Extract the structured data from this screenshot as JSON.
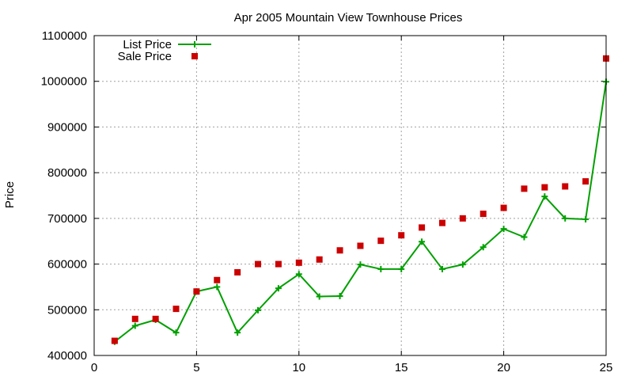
{
  "chart_data": {
    "type": "line",
    "title": "Apr 2005 Mountain View Townhouse Prices",
    "xlabel": "",
    "ylabel": "Price",
    "xlim": [
      0,
      25
    ],
    "ylim": [
      400000,
      1100000
    ],
    "x_ticks": [
      "0",
      "5",
      "10",
      "15",
      "20",
      "25"
    ],
    "y_ticks": [
      "400000",
      "500000",
      "600000",
      "700000",
      "800000",
      "900000",
      "1000000",
      "1100000"
    ],
    "grid": true,
    "legend_position": "top-left",
    "series": [
      {
        "name": "List Price",
        "style": "line-with-plus-markers",
        "color": "#00a000",
        "x": [
          1,
          2,
          3,
          4,
          5,
          6,
          7,
          8,
          9,
          10,
          11,
          12,
          13,
          14,
          15,
          16,
          17,
          18,
          19,
          20,
          21,
          22,
          23,
          24,
          25
        ],
        "y": [
          430000,
          465000,
          478000,
          450000,
          540000,
          550000,
          450000,
          499000,
          547000,
          578000,
          529000,
          530000,
          599000,
          589000,
          589000,
          649000,
          589000,
          599000,
          637000,
          677000,
          659000,
          748000,
          700000,
          698000,
          999000
        ]
      },
      {
        "name": "Sale Price",
        "style": "square-markers",
        "color": "#cc0000",
        "x": [
          1,
          2,
          3,
          4,
          5,
          6,
          7,
          8,
          9,
          10,
          11,
          12,
          13,
          14,
          15,
          16,
          17,
          18,
          19,
          20,
          21,
          22,
          23,
          24,
          25
        ],
        "y": [
          432000,
          480000,
          480000,
          502000,
          540000,
          565000,
          582000,
          600000,
          600000,
          603000,
          610000,
          630000,
          640000,
          651000,
          663000,
          680000,
          690000,
          700000,
          710000,
          723000,
          765000,
          768000,
          770000,
          781000,
          1050000
        ]
      }
    ]
  }
}
